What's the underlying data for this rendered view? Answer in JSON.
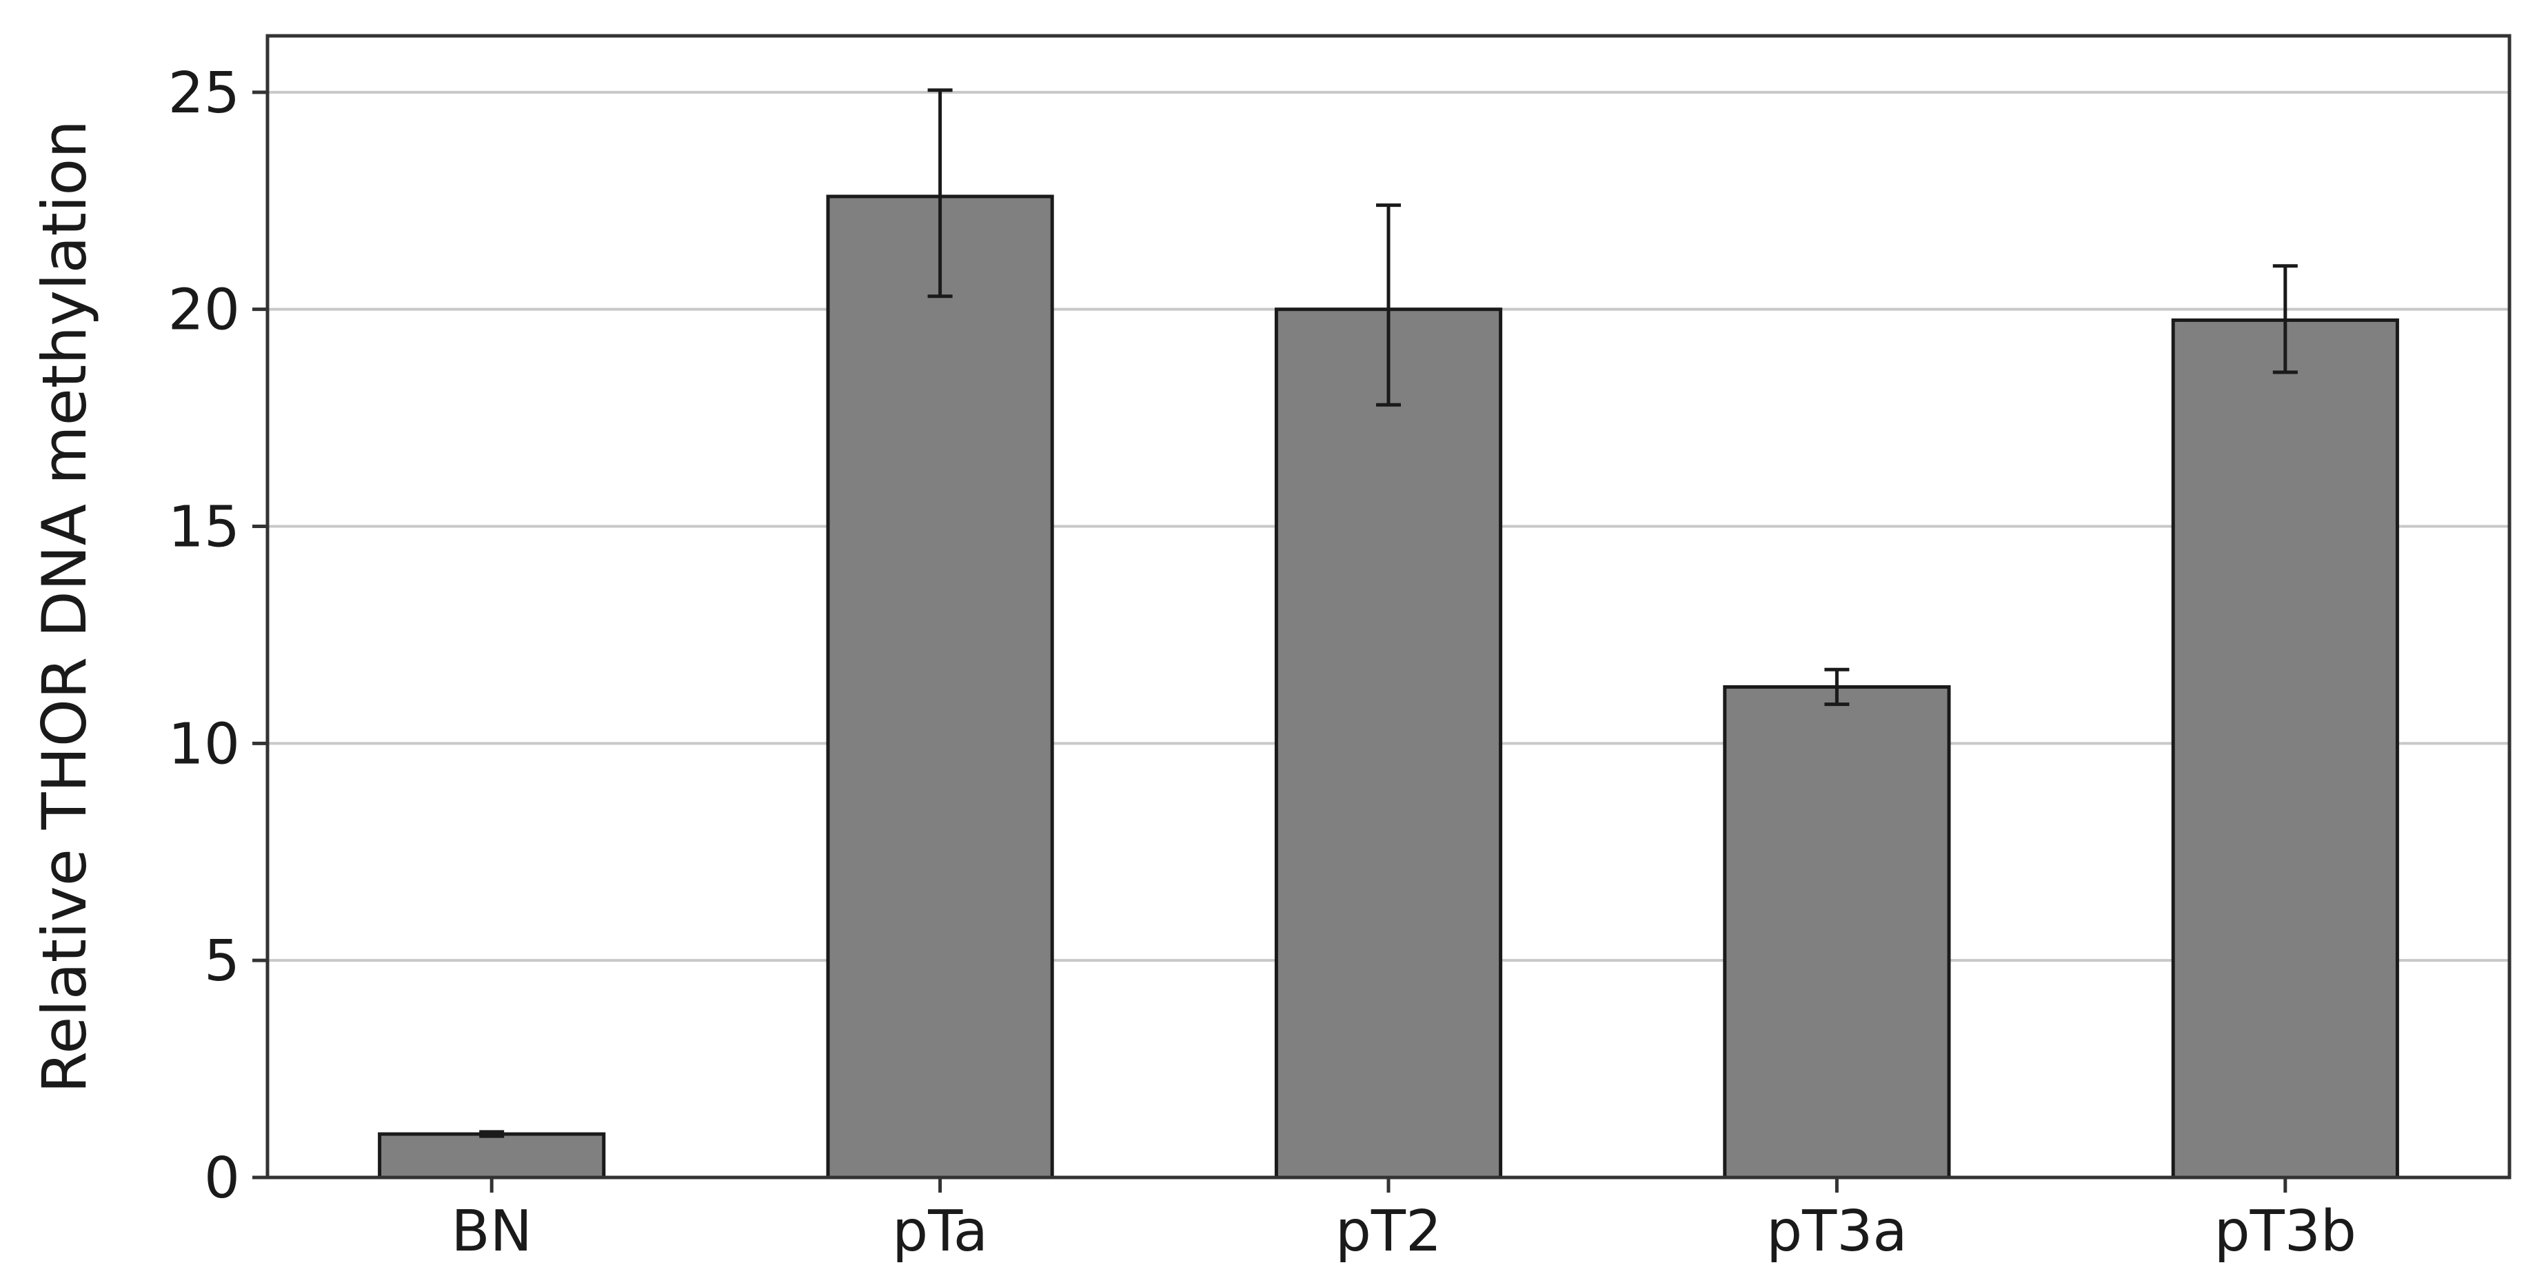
{
  "chart_data": {
    "type": "bar",
    "title": "",
    "xlabel": "",
    "ylabel": "Relative THOR DNA methylation",
    "categories": [
      "BN",
      "pTa",
      "pT2",
      "pT3a",
      "pT3b"
    ],
    "values": [
      1.0,
      22.6,
      20.0,
      11.3,
      19.75
    ],
    "error_low": [
      0.95,
      20.3,
      17.8,
      10.9,
      18.55
    ],
    "error_high": [
      1.05,
      25.05,
      22.4,
      11.7,
      21.0
    ],
    "ylim": [
      0,
      26.3
    ],
    "yticks": [
      0,
      5,
      10,
      15,
      20,
      25
    ],
    "grid": "horizontal",
    "bar_color": "#808080"
  }
}
